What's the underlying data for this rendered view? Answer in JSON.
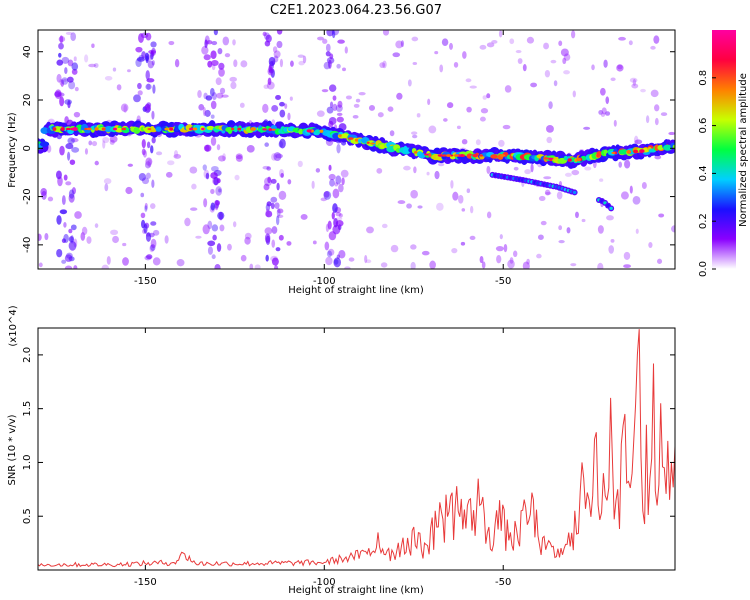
{
  "title": "C2E1.2023.064.23.56.G07",
  "colorbar": {
    "label": "Normalized spectral amplitude",
    "ticks": [
      "0.0",
      "0.2",
      "0.4",
      "0.6",
      "0.8"
    ],
    "range": [
      0,
      1
    ],
    "stops": [
      "#ffffff",
      "#8a00ff",
      "#1a10ff",
      "#00d0ff",
      "#00ff40",
      "#c8ff00",
      "#ff8000",
      "#ff0040",
      "#ff00a0"
    ]
  },
  "chart_data": [
    {
      "type": "heatmap",
      "xlabel": "Height of straight line (km)",
      "ylabel": "Frequency (Hz)",
      "xlim": [
        -180,
        -2
      ],
      "ylim": [
        -50,
        49
      ],
      "x_ticks": [
        -150,
        -100,
        -50
      ],
      "y_ticks": [
        -40,
        -20,
        0,
        20,
        40
      ],
      "ridge": [
        {
          "x": -178,
          "y": 8
        },
        {
          "x": -160,
          "y": 8
        },
        {
          "x": -140,
          "y": 8
        },
        {
          "x": -120,
          "y": 8
        },
        {
          "x": -100,
          "y": 7
        },
        {
          "x": -90,
          "y": 3
        },
        {
          "x": -80,
          "y": 0
        },
        {
          "x": -70,
          "y": -3
        },
        {
          "x": -60,
          "y": -3
        },
        {
          "x": -50,
          "y": -3
        },
        {
          "x": -40,
          "y": -4
        },
        {
          "x": -30,
          "y": -5
        },
        {
          "x": -20,
          "y": -2
        },
        {
          "x": -10,
          "y": -1
        },
        {
          "x": -3,
          "y": 1
        }
      ],
      "secondary_track": [
        {
          "x": -53,
          "y": -11
        },
        {
          "x": -45,
          "y": -13
        },
        {
          "x": -35,
          "y": -16
        },
        {
          "x": -22,
          "y": -22
        },
        {
          "x": -19,
          "y": -26
        }
      ],
      "vertical_bands_x": [
        -172,
        -150,
        -131,
        -114,
        -97
      ]
    },
    {
      "type": "line",
      "xlabel": "Height of straight line (km)",
      "ylabel": "SNR (10 * v/v)",
      "y_multiplier": "(x10^4)",
      "xlim": [
        -180,
        -2
      ],
      "ylim": [
        0,
        2.25
      ],
      "x_ticks": [
        -150,
        -100,
        -50
      ],
      "y_ticks": [
        0.5,
        1.0,
        1.5,
        2.0
      ],
      "y_tick_labels": [
        "0.5",
        "1.0",
        "1.5",
        "2.0"
      ],
      "color": "#e83a3a",
      "series": [
        {
          "x": [
            -180,
            -160,
            -142,
            -139,
            -136,
            -120,
            -100,
            -93,
            -88,
            -85,
            -82,
            -78,
            -75,
            -72,
            -69,
            -66,
            -63,
            -60,
            -57,
            -54,
            -51,
            -48,
            -45,
            -42,
            -39,
            -36,
            -33,
            -30,
            -28,
            -26,
            -24,
            -22,
            -20,
            -18,
            -16,
            -14,
            -12,
            -11,
            -10,
            -9,
            -8,
            -7,
            -6,
            -5,
            -4,
            -3,
            -2
          ],
          "y": [
            0.05,
            0.05,
            0.07,
            0.15,
            0.06,
            0.06,
            0.07,
            0.12,
            0.15,
            0.35,
            0.2,
            0.3,
            0.4,
            0.25,
            0.55,
            0.7,
            0.78,
            0.6,
            0.85,
            0.4,
            0.65,
            0.35,
            0.55,
            0.72,
            0.3,
            0.22,
            0.2,
            0.55,
            1.0,
            0.65,
            1.28,
            0.9,
            1.6,
            0.75,
            1.45,
            0.9,
            2.24,
            0.55,
            1.35,
            0.85,
            1.92,
            0.6,
            1.55,
            0.95,
            1.2,
            1.0,
            1.15
          ]
        }
      ]
    }
  ]
}
